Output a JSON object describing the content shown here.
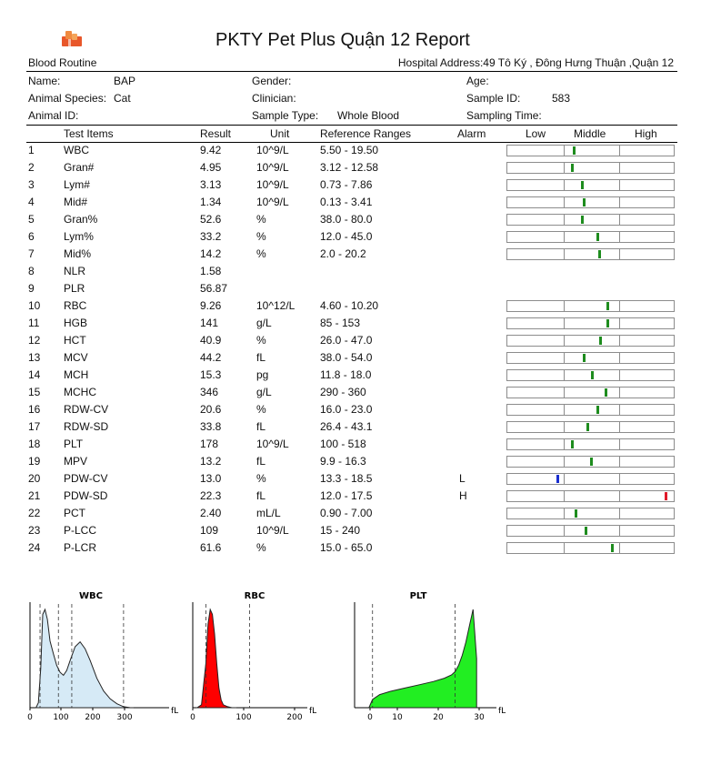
{
  "header": {
    "title": "PKTY Pet Plus Quận 12 Report",
    "logo_icon": "clinic-logo-icon",
    "report_type": "Blood Routine",
    "hospital_address": "Hospital Address:49 Tô Ký , Đông Hưng Thuận ,Quận 12"
  },
  "patient": {
    "name_label": "Name:",
    "name_value": "BAP",
    "gender_label": "Gender:",
    "age_label": "Age:",
    "species_label": "Animal Species:",
    "species_value": "Cat",
    "clinician_label": "Clinician:",
    "sample_id_label": "Sample ID:",
    "sample_id_value": "583",
    "animal_id_label": "Animal ID:",
    "sample_type_label": "Sample Type:",
    "sample_type_value": "Whole Blood",
    "sampling_time_label": "Sampling Time:"
  },
  "table": {
    "columns": [
      "Test Items",
      "Result",
      "Unit",
      "Reference Ranges",
      "Alarm",
      "Low",
      "Middle",
      "High"
    ],
    "rows": [
      {
        "no": "1",
        "item": "WBC",
        "result": "9.42",
        "unit": "10^9/L",
        "range": "5.50 - 19.50",
        "alarm": "",
        "gauge": 0.4,
        "status": "normal"
      },
      {
        "no": "2",
        "item": "Gran#",
        "result": "4.95",
        "unit": "10^9/L",
        "range": "3.12 - 12.58",
        "alarm": "",
        "gauge": 0.39,
        "status": "normal"
      },
      {
        "no": "3",
        "item": "Lym#",
        "result": "3.13",
        "unit": "10^9/L",
        "range": "0.73 - 7.86",
        "alarm": "",
        "gauge": 0.45,
        "status": "normal"
      },
      {
        "no": "4",
        "item": "Mid#",
        "result": "1.34",
        "unit": "10^9/L",
        "range": "0.13 - 3.41",
        "alarm": "",
        "gauge": 0.46,
        "status": "normal"
      },
      {
        "no": "5",
        "item": "Gran%",
        "result": "52.6",
        "unit": "%",
        "range": "38.0 - 80.0",
        "alarm": "",
        "gauge": 0.45,
        "status": "normal"
      },
      {
        "no": "6",
        "item": "Lym%",
        "result": "33.2",
        "unit": "%",
        "range": "12.0 - 45.0",
        "alarm": "",
        "gauge": 0.54,
        "status": "normal"
      },
      {
        "no": "7",
        "item": "Mid%",
        "result": "14.2",
        "unit": "%",
        "range": "2.0 - 20.2",
        "alarm": "",
        "gauge": 0.55,
        "status": "normal"
      },
      {
        "no": "8",
        "item": "NLR",
        "result": "1.58",
        "unit": "",
        "range": "",
        "alarm": "",
        "gauge": null,
        "status": ""
      },
      {
        "no": "9",
        "item": "PLR",
        "result": "56.87",
        "unit": "",
        "range": "",
        "alarm": "",
        "gauge": null,
        "status": ""
      },
      {
        "no": "10",
        "item": "RBC",
        "result": "9.26",
        "unit": "10^12/L",
        "range": "4.60 - 10.20",
        "alarm": "",
        "gauge": 0.6,
        "status": "normal"
      },
      {
        "no": "11",
        "item": "HGB",
        "result": "141",
        "unit": "g/L",
        "range": "85 - 153",
        "alarm": "",
        "gauge": 0.6,
        "status": "normal"
      },
      {
        "no": "12",
        "item": "HCT",
        "result": "40.9",
        "unit": "%",
        "range": "26.0 - 47.0",
        "alarm": "",
        "gauge": 0.56,
        "status": "normal"
      },
      {
        "no": "13",
        "item": "MCV",
        "result": "44.2",
        "unit": "fL",
        "range": "38.0 - 54.0",
        "alarm": "",
        "gauge": 0.46,
        "status": "normal"
      },
      {
        "no": "14",
        "item": "MCH",
        "result": "15.3",
        "unit": "pg",
        "range": "11.8 - 18.0",
        "alarm": "",
        "gauge": 0.51,
        "status": "normal"
      },
      {
        "no": "15",
        "item": "MCHC",
        "result": "346",
        "unit": "g/L",
        "range": "290 - 360",
        "alarm": "",
        "gauge": 0.59,
        "status": "normal"
      },
      {
        "no": "16",
        "item": "RDW-CV",
        "result": "20.6",
        "unit": "%",
        "range": "16.0 - 23.0",
        "alarm": "",
        "gauge": 0.54,
        "status": "normal"
      },
      {
        "no": "17",
        "item": "RDW-SD",
        "result": "33.8",
        "unit": "fL",
        "range": "26.4 - 43.1",
        "alarm": "",
        "gauge": 0.48,
        "status": "normal"
      },
      {
        "no": "18",
        "item": "PLT",
        "result": "178",
        "unit": "10^9/L",
        "range": "100 - 518",
        "alarm": "",
        "gauge": 0.39,
        "status": "normal"
      },
      {
        "no": "19",
        "item": "MPV",
        "result": "13.2",
        "unit": "fL",
        "range": "9.9 - 16.3",
        "alarm": "",
        "gauge": 0.5,
        "status": "normal"
      },
      {
        "no": "20",
        "item": "PDW-CV",
        "result": "13.0",
        "unit": "%",
        "range": "13.3 - 18.5",
        "alarm": "L",
        "gauge": 0.3,
        "status": "low"
      },
      {
        "no": "21",
        "item": "PDW-SD",
        "result": "22.3",
        "unit": "fL",
        "range": "12.0 - 17.5",
        "alarm": "H",
        "gauge": 0.95,
        "status": "high"
      },
      {
        "no": "22",
        "item": "PCT",
        "result": "2.40",
        "unit": "mL/L",
        "range": "0.90 - 7.00",
        "alarm": "",
        "gauge": 0.41,
        "status": "normal"
      },
      {
        "no": "23",
        "item": "P-LCC",
        "result": "109",
        "unit": "10^9/L",
        "range": "15 - 240",
        "alarm": "",
        "gauge": 0.47,
        "status": "normal"
      },
      {
        "no": "24",
        "item": "P-LCR",
        "result": "61.6",
        "unit": "%",
        "range": "15.0 - 65.0",
        "alarm": "",
        "gauge": 0.63,
        "status": "normal"
      }
    ]
  },
  "colors": {
    "normal": "#1e8c1e",
    "low": "#1a2fd0",
    "high": "#e01a2a",
    "wbc_fill": "#d6eaf6",
    "rbc_fill": "#ff0000",
    "plt_fill": "#22ee22"
  },
  "chart_data": [
    {
      "type": "area",
      "title": "WBC",
      "xlabel": "fL",
      "xticks": [
        "0",
        "100",
        "200",
        "300"
      ],
      "xlim": [
        0,
        400
      ],
      "x": [
        18,
        25,
        32,
        38,
        45,
        52,
        60,
        70,
        80,
        90,
        100,
        110,
        120,
        135,
        150,
        165,
        180,
        200,
        220,
        240,
        260,
        280,
        300,
        310
      ],
      "y": [
        0,
        5,
        40,
        95,
        100,
        90,
        68,
        55,
        43,
        36,
        33,
        38,
        48,
        62,
        67,
        60,
        48,
        30,
        17,
        9,
        4,
        1,
        0,
        0
      ],
      "reference_lines": [
        30,
        85,
        125,
        280
      ]
    },
    {
      "type": "area",
      "title": "RBC",
      "xlabel": "fL",
      "xticks": [
        "0",
        "100",
        "200"
      ],
      "xlim": [
        0,
        250
      ],
      "x": [
        10,
        20,
        30,
        35,
        40,
        45,
        50,
        55,
        60,
        65,
        70,
        80,
        90,
        100
      ],
      "y": [
        0,
        3,
        45,
        85,
        100,
        95,
        75,
        45,
        20,
        8,
        3,
        1,
        0,
        0
      ],
      "reference_lines": [
        30,
        130
      ]
    },
    {
      "type": "area",
      "title": "PLT",
      "xlabel": "fL",
      "xticks": [
        "0",
        "10",
        "20",
        "30"
      ],
      "xlim": [
        -2,
        36
      ],
      "x": [
        2,
        3,
        5,
        8,
        12,
        16,
        20,
        23,
        25,
        26,
        27,
        28,
        29,
        30,
        31,
        32
      ],
      "y": [
        0,
        5,
        8,
        10,
        12,
        14,
        16,
        18,
        20,
        22,
        26,
        32,
        40,
        50,
        60,
        30
      ],
      "reference_lines": [
        3,
        26
      ]
    }
  ]
}
